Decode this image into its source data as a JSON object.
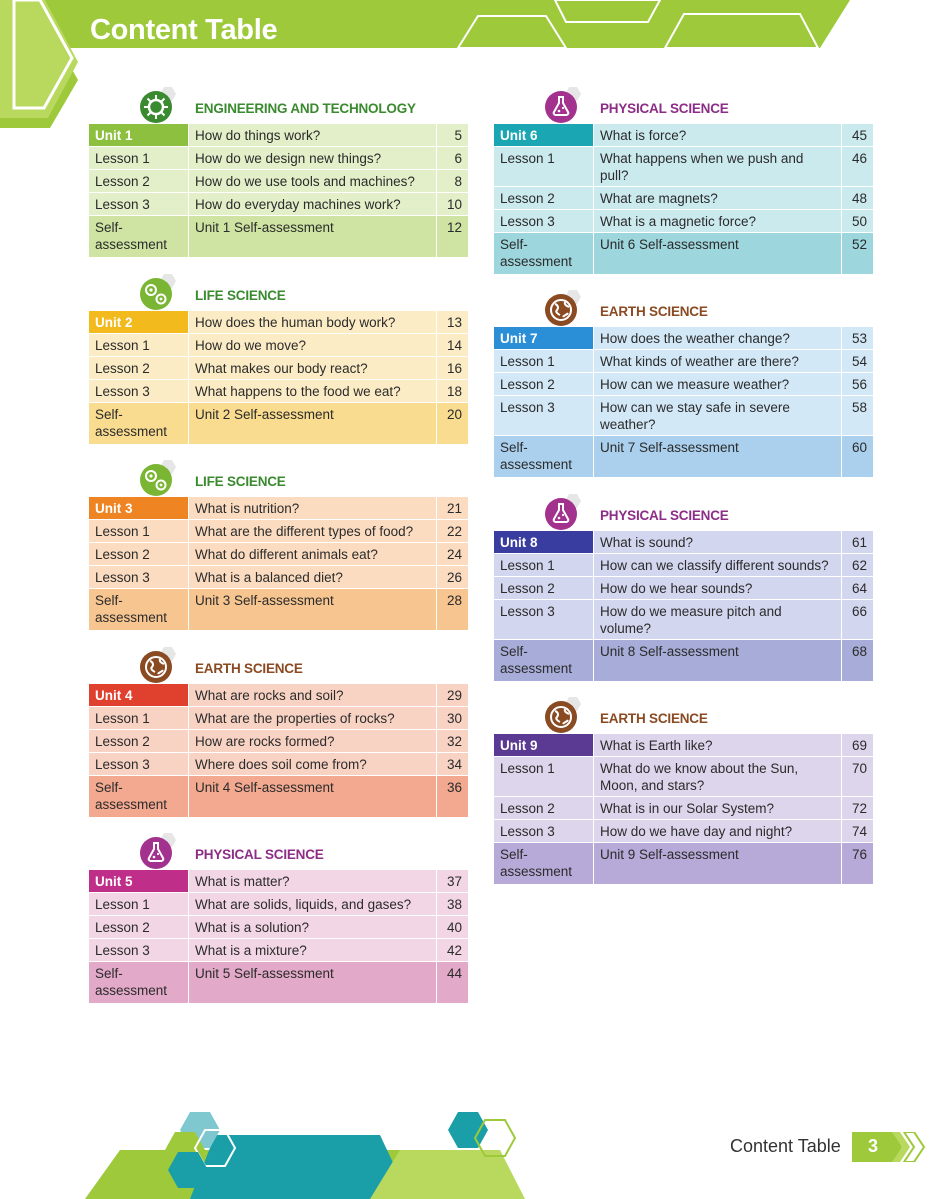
{
  "page": {
    "title": "Content Table",
    "footer_label": "Content Table",
    "page_number": "3"
  },
  "colors": {
    "brand_green": "#9dc93a",
    "light_green": "#c8e07a"
  },
  "units": [
    {
      "category": "ENGINEERING AND TECHNOLOGY",
      "category_color": "#3a8a2f",
      "icon": "gear-circuit-icon",
      "icon_color": "#3a8a2f",
      "head_color": "#8ec040",
      "row_color": "#e2efc8",
      "self_color": "#cfe4a3",
      "unit_label": "Unit 1",
      "unit_title": "How do things work?",
      "unit_page": "5",
      "lessons": [
        {
          "label": "Lesson 1",
          "title": "How do we design new things?",
          "page": "6"
        },
        {
          "label": "Lesson 2",
          "title": "How do we use tools and machines?",
          "page": "8"
        },
        {
          "label": "Lesson 3",
          "title": "How do everyday machines work?",
          "page": "10"
        }
      ],
      "self_label": "Self-assessment",
      "self_title": "Unit 1 Self-assessment",
      "self_page": "12"
    },
    {
      "category": "LIFE SCIENCE",
      "category_color": "#3a8a2f",
      "icon": "cells-icon",
      "icon_color": "#7ab534",
      "head_color": "#f2ba1c",
      "row_color": "#fcecc5",
      "self_color": "#f9dc8f",
      "unit_label": "Unit 2",
      "unit_title": "How does the human body work?",
      "unit_page": "13",
      "lessons": [
        {
          "label": "Lesson 1",
          "title": "How do we move?",
          "page": "14"
        },
        {
          "label": "Lesson 2",
          "title": "What makes our body react?",
          "page": "16"
        },
        {
          "label": "Lesson 3",
          "title": "What happens to the food we eat?",
          "page": "18"
        }
      ],
      "self_label": "Self-assessment",
      "self_title": "Unit 2 Self-assessment",
      "self_page": "20"
    },
    {
      "category": "LIFE SCIENCE",
      "category_color": "#3a8a2f",
      "icon": "cells-icon",
      "icon_color": "#7ab534",
      "head_color": "#ee8422",
      "row_color": "#fbdcc0",
      "self_color": "#f7c690",
      "unit_label": "Unit 3",
      "unit_title": "What is nutrition?",
      "unit_page": "21",
      "lessons": [
        {
          "label": "Lesson 1",
          "title": "What are the different types of food?",
          "page": "22"
        },
        {
          "label": "Lesson 2",
          "title": "What do different animals eat?",
          "page": "24"
        },
        {
          "label": "Lesson 3",
          "title": "What is a balanced diet?",
          "page": "26"
        }
      ],
      "self_label": "Self-assessment",
      "self_title": "Unit 3 Self-assessment",
      "self_page": "28"
    },
    {
      "category": "EARTH SCIENCE",
      "category_color": "#8a4a22",
      "icon": "globe-icon",
      "icon_color": "#8a4a22",
      "head_color": "#e0402e",
      "row_color": "#f8d3c4",
      "self_color": "#f2a990",
      "unit_label": "Unit 4",
      "unit_title": "What are rocks and soil?",
      "unit_page": "29",
      "lessons": [
        {
          "label": "Lesson 1",
          "title": "What are the properties of rocks?",
          "page": "30"
        },
        {
          "label": "Lesson 2",
          "title": "How are rocks formed?",
          "page": "32"
        },
        {
          "label": "Lesson 3",
          "title": "Where does soil come from?",
          "page": "34"
        }
      ],
      "self_label": "Self-assessment",
      "self_title": "Unit 4 Self-assessment",
      "self_page": "36"
    },
    {
      "category": "PHYSICAL SCIENCE",
      "category_color": "#8c2d86",
      "icon": "flask-icon",
      "icon_color": "#a3328f",
      "head_color": "#bf2f8a",
      "row_color": "#f3d6e6",
      "self_color": "#e2a9c8",
      "unit_label": "Unit 5",
      "unit_title": "What is matter?",
      "unit_page": "37",
      "lessons": [
        {
          "label": "Lesson 1",
          "title": "What are solids, liquids, and gases?",
          "page": "38"
        },
        {
          "label": "Lesson 2",
          "title": "What is a solution?",
          "page": "40"
        },
        {
          "label": "Lesson 3",
          "title": "What is a mixture?",
          "page": "42"
        }
      ],
      "self_label": "Self-assessment",
      "self_title": "Unit 5 Self-assessment",
      "self_page": "44"
    },
    {
      "category": "PHYSICAL SCIENCE",
      "category_color": "#8c2d86",
      "icon": "flask-icon",
      "icon_color": "#a3328f",
      "head_color": "#1aa6b3",
      "row_color": "#cbeaee",
      "self_color": "#9dd6dd",
      "unit_label": "Unit 6",
      "unit_title": "What is force?",
      "unit_page": "45",
      "lessons": [
        {
          "label": "Lesson 1",
          "title": "What happens when we push and pull?",
          "page": "46"
        },
        {
          "label": "Lesson 2",
          "title": "What are magnets?",
          "page": "48"
        },
        {
          "label": "Lesson 3",
          "title": "What is a magnetic force?",
          "page": "50"
        }
      ],
      "self_label": "Self-assessment",
      "self_title": "Unit 6 Self-assessment",
      "self_page": "52"
    },
    {
      "category": "EARTH SCIENCE",
      "category_color": "#8a4a22",
      "icon": "globe-icon",
      "icon_color": "#8a4a22",
      "head_color": "#2a8fd6",
      "row_color": "#d3e8f7",
      "self_color": "#aad0ee",
      "unit_label": "Unit 7",
      "unit_title": "How does the weather change?",
      "unit_page": "53",
      "lessons": [
        {
          "label": "Lesson 1",
          "title": "What kinds of weather are there?",
          "page": "54"
        },
        {
          "label": "Lesson 2",
          "title": "How can we measure weather?",
          "page": "56"
        },
        {
          "label": "Lesson 3",
          "title": "How can we stay safe in severe weather?",
          "page": "58"
        }
      ],
      "self_label": "Self-assessment",
      "self_title": "Unit 7 Self-assessment",
      "self_page": "60"
    },
    {
      "category": "PHYSICAL SCIENCE",
      "category_color": "#8c2d86",
      "icon": "flask-icon",
      "icon_color": "#a3328f",
      "head_color": "#3a3da0",
      "row_color": "#d3d6ef",
      "self_color": "#a7add8",
      "unit_label": "Unit 8",
      "unit_title": "What is sound?",
      "unit_page": "61",
      "lessons": [
        {
          "label": "Lesson 1",
          "title": "How can we classify different sounds?",
          "page": "62"
        },
        {
          "label": "Lesson 2",
          "title": "How do we hear sounds?",
          "page": "64"
        },
        {
          "label": "Lesson 3",
          "title": "How do we measure pitch and volume?",
          "page": "66"
        }
      ],
      "self_label": "Self-assessment",
      "self_title": "Unit 8 Self-assessment",
      "self_page": "68"
    },
    {
      "category": "EARTH SCIENCE",
      "category_color": "#8a4a22",
      "icon": "globe-icon",
      "icon_color": "#8a4a22",
      "head_color": "#5a3a92",
      "row_color": "#dcd5ec",
      "self_color": "#b8aad8",
      "unit_label": "Unit 9",
      "unit_title": "What is Earth like?",
      "unit_page": "69",
      "lessons": [
        {
          "label": "Lesson 1",
          "title": "What do we know about the Sun, Moon, and stars?",
          "page": "70"
        },
        {
          "label": "Lesson 2",
          "title": "What is in our Solar System?",
          "page": "72"
        },
        {
          "label": "Lesson 3",
          "title": "How do we have day and night?",
          "page": "74"
        }
      ],
      "self_label": "Self-assessment",
      "self_title": "Unit 9 Self-assessment",
      "self_page": "76"
    }
  ]
}
